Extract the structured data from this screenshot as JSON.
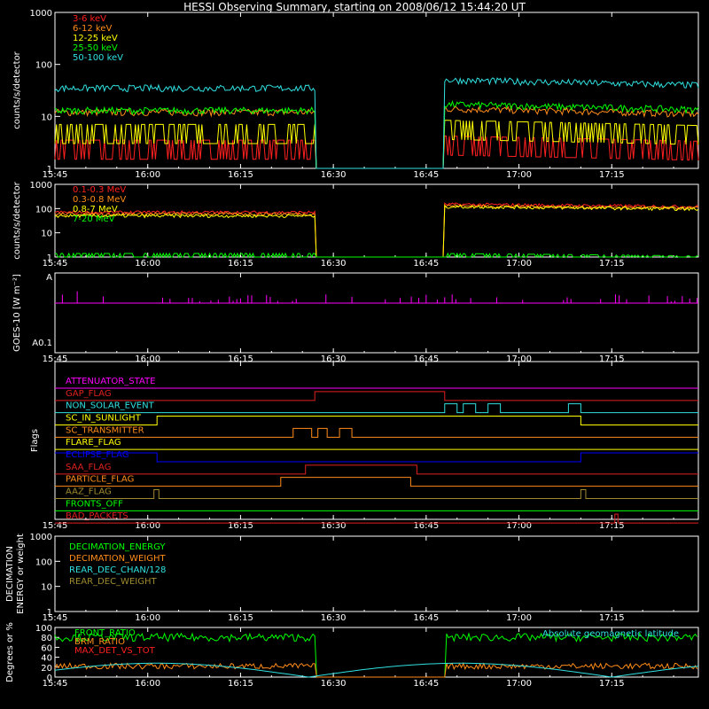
{
  "title": "HESSI Observing Summary, starting on 2008/06/12 15:44:20 UT",
  "x_tick_labels": [
    "15:45",
    "16:00",
    "16:15",
    "16:30",
    "16:45",
    "17:00",
    "17:15"
  ],
  "x_ticks_min": [
    0,
    15,
    30,
    45,
    60,
    75,
    90
  ],
  "time_range_min": [
    0,
    104
  ],
  "colors": {
    "red": "#ff2020",
    "orange": "#ff8c1a",
    "yellow": "#ffff00",
    "green": "#00ff00",
    "cyan": "#30e0e0",
    "magenta": "#ff00ff",
    "blue": "#0000ff",
    "olive": "#a08a30",
    "darkred": "#e02020",
    "white": "#ffffff"
  },
  "chart_data": [
    {
      "type": "line",
      "panel": "lightcurve-low",
      "ylabel": "counts/s/detector",
      "yscale": "log",
      "ylim": [
        1,
        1000
      ],
      "ytick_labels": [
        "1",
        "10",
        "100",
        "1000"
      ],
      "data_gap_min": [
        42,
        63
      ],
      "series": [
        {
          "name": "3-6 keV",
          "color": "red",
          "pre": 2.5,
          "post": 3.0
        },
        {
          "name": "6-12 keV",
          "color": "orange",
          "pre": 12,
          "post": 14
        },
        {
          "name": "12-25 keV",
          "color": "yellow",
          "pre": 5,
          "post": 6
        },
        {
          "name": "25-50 keV",
          "color": "green",
          "pre": 13,
          "post": 17
        },
        {
          "name": "50-100 keV",
          "color": "cyan",
          "pre": 35,
          "post": 50
        }
      ]
    },
    {
      "type": "line",
      "panel": "lightcurve-high",
      "ylabel": "counts/s/detector",
      "yscale": "log",
      "ylim": [
        1,
        1000
      ],
      "ytick_labels": [
        "1",
        "10",
        "100",
        "1000"
      ],
      "data_gap_min": [
        42,
        63
      ],
      "series": [
        {
          "name": "0.1-0.3 MeV",
          "color": "red",
          "pre": 70,
          "post": 150
        },
        {
          "name": "0.3-0.8 MeV",
          "color": "orange",
          "pre": 60,
          "post": 130
        },
        {
          "name": "0.8-7 MeV",
          "color": "yellow",
          "pre": 50,
          "post": 120
        },
        {
          "name": "7-20 MeV",
          "color": "green",
          "pre": 1,
          "post": 1
        }
      ]
    },
    {
      "type": "line",
      "panel": "goes",
      "ylabel": "GOES-10 [W m⁻²]",
      "ytick_labels": [
        "A",
        "A0.1"
      ],
      "series": [
        {
          "name": "GOES-10",
          "color": "magenta"
        }
      ]
    }
  ],
  "flags": {
    "ylabel": "Flags",
    "items": [
      {
        "name": "ATTENUATOR_STATE",
        "color": "magenta",
        "high": []
      },
      {
        "name": "GAP_FLAG",
        "color": "darkred",
        "high": [
          [
            42,
            63
          ]
        ]
      },
      {
        "name": "NON_SOLAR_EVENT",
        "color": "cyan",
        "high": [
          [
            63,
            65
          ],
          [
            66,
            68
          ],
          [
            70,
            72
          ],
          [
            83,
            85
          ]
        ]
      },
      {
        "name": "SC_IN_SUNLIGHT",
        "color": "yellow",
        "high": [
          [
            16.5,
            85
          ]
        ]
      },
      {
        "name": "SC_TRANSMITTER",
        "color": "orange",
        "high": [
          [
            38.5,
            41.5
          ],
          [
            42.5,
            44
          ],
          [
            46,
            48
          ]
        ]
      },
      {
        "name": "FLARE_FLAG",
        "color": "yellow",
        "high": []
      },
      {
        "name": "ECLIPSE_FLAG",
        "color": "blue",
        "high": [
          [
            0,
            16.5
          ],
          [
            85,
            104
          ]
        ]
      },
      {
        "name": "SAA_FLAG",
        "color": "darkred",
        "high": [
          [
            40.5,
            58.5
          ]
        ]
      },
      {
        "name": "PARTICLE_FLAG",
        "color": "orange",
        "high": [
          [
            36.5,
            57.5
          ]
        ]
      },
      {
        "name": "AAZ_FLAG",
        "color": "olive",
        "high": [
          [
            16,
            16.8
          ],
          [
            85,
            85.8
          ]
        ]
      },
      {
        "name": "FRONTS_OFF",
        "color": "green",
        "high": []
      },
      {
        "name": "BAD_PACKETS",
        "color": "darkred",
        "high": [
          [
            90.5,
            91
          ]
        ]
      }
    ]
  },
  "decimation": {
    "ylabel": "DECIMATION\nENERGY or weight",
    "ytick_labels": [
      "1",
      "10",
      "100",
      "1000"
    ],
    "legend": [
      {
        "name": "DECIMATION_ENERGY",
        "color": "green"
      },
      {
        "name": "DECIMATION_WEIGHT",
        "color": "orange"
      },
      {
        "name": "REAR_DEC_CHAN/128",
        "color": "cyan"
      },
      {
        "name": "REAR_DEC_WEIGHT",
        "color": "olive"
      }
    ]
  },
  "ratio": {
    "ylabel": "Degrees or %",
    "ytick_labels": [
      "0",
      "20",
      "40",
      "60",
      "80",
      "100"
    ],
    "legend": [
      {
        "name": "FRONT_RATIO",
        "color": "green"
      },
      {
        "name": "BRM_RATIO",
        "color": "orange"
      },
      {
        "name": "MAX_DET_VS_TOT",
        "color": "red"
      }
    ],
    "right_label": {
      "name": "Absolute geomagnetic latitude",
      "color": "cyan"
    }
  }
}
